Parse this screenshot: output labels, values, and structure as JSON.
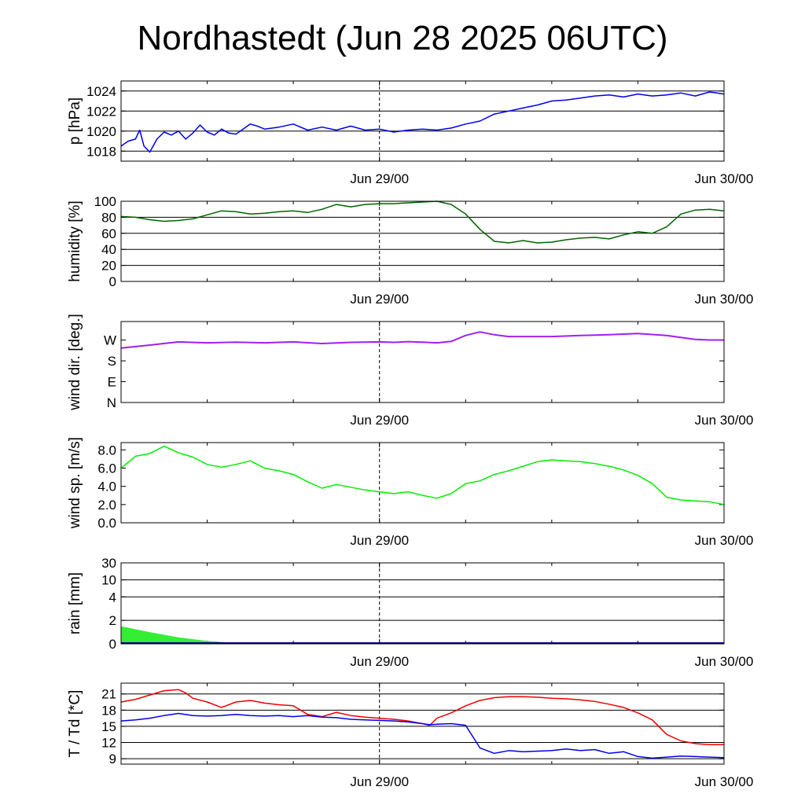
{
  "title": "Nordhastedt (Jun 28 2025 06UTC)",
  "x_ticks": [
    {
      "label": "Jun 29/00",
      "hour": 18
    },
    {
      "label": "Jun 30/00",
      "hour": 42
    }
  ],
  "colors": {
    "pressure": "#0000ee",
    "humidity": "#006400",
    "wind_dir": "#a020f0",
    "wind_speed": "#00ee00",
    "rain_fill": "#33ee33",
    "rain_line": "#00008b",
    "temperature": "#ee0000",
    "dewpoint": "#0000ee"
  },
  "chart_data": [
    {
      "type": "line",
      "id": "pressure",
      "ylabel": "p [hPa]",
      "ylim": [
        1017,
        1025
      ],
      "yticks": [
        1018,
        1020,
        1022,
        1024
      ],
      "ytick_labels": [
        "1018",
        "1020",
        "1022",
        "1024"
      ],
      "grid_values": [
        1018,
        1020,
        1022,
        1024
      ],
      "xlim_hours": [
        0,
        42
      ],
      "series": [
        {
          "color_key": "pressure",
          "x": [
            0,
            0.5,
            1,
            1.3,
            1.6,
            2,
            2.5,
            3,
            3.5,
            4,
            4.5,
            5,
            5.5,
            6,
            6.5,
            7,
            7.5,
            8,
            9,
            9.5,
            10,
            11,
            12,
            13,
            14,
            15,
            16,
            17,
            18,
            19,
            20,
            21,
            22,
            23,
            24,
            25,
            26,
            27,
            28,
            29,
            30,
            31,
            32,
            33,
            34,
            35,
            36,
            37,
            38,
            39,
            40,
            41,
            42
          ],
          "y": [
            1018.5,
            1019,
            1019.2,
            1020.1,
            1018.5,
            1017.9,
            1019.2,
            1019.9,
            1019.6,
            1020,
            1019.2,
            1019.8,
            1020.6,
            1019.9,
            1019.6,
            1020.2,
            1019.8,
            1019.7,
            1020.7,
            1020.5,
            1020.2,
            1020.4,
            1020.7,
            1020.1,
            1020.4,
            1020.1,
            1020.5,
            1020.1,
            1020.2,
            1019.9,
            1020.1,
            1020.2,
            1020.1,
            1020.3,
            1020.7,
            1021,
            1021.7,
            1022,
            1022.3,
            1022.6,
            1023,
            1023.1,
            1023.3,
            1023.5,
            1023.6,
            1023.4,
            1023.7,
            1023.5,
            1023.6,
            1023.8,
            1023.5,
            1023.9,
            1023.7
          ]
        }
      ]
    },
    {
      "type": "line",
      "id": "humidity",
      "ylabel": "humidity [%]",
      "ylim": [
        0,
        100
      ],
      "yticks": [
        0,
        20,
        40,
        60,
        80,
        100
      ],
      "ytick_labels": [
        "0",
        "20",
        "40",
        "60",
        "80",
        "100"
      ],
      "grid_values": [
        20,
        40,
        60,
        80,
        100
      ],
      "xlim_hours": [
        0,
        42
      ],
      "series": [
        {
          "color_key": "humidity",
          "x": [
            0,
            1,
            2,
            3,
            4,
            5,
            6,
            7,
            8,
            9,
            10,
            11,
            12,
            13,
            14,
            15,
            16,
            17,
            18,
            19,
            20,
            21,
            22,
            23,
            24,
            25,
            26,
            27,
            28,
            29,
            30,
            31,
            32,
            33,
            34,
            35,
            36,
            37,
            38,
            39,
            40,
            41,
            42
          ],
          "y": [
            81,
            80,
            77,
            75,
            76,
            78,
            83,
            88,
            87,
            84,
            85,
            87,
            88,
            86,
            90,
            96,
            93,
            96,
            97,
            97,
            98,
            99,
            100,
            96,
            84,
            65,
            50,
            48,
            51,
            48,
            49,
            52,
            54,
            55,
            53,
            58,
            62,
            60,
            68,
            84,
            89,
            90,
            88
          ]
        }
      ]
    },
    {
      "type": "line",
      "id": "wind_dir",
      "ylabel": "wind dir. [deg.]",
      "ylim": [
        0,
        350
      ],
      "yticks": [
        0,
        90,
        180,
        270
      ],
      "ytick_labels": [
        "N",
        "E",
        "S",
        "W"
      ],
      "grid_values": [],
      "xlim_hours": [
        0,
        42
      ],
      "series": [
        {
          "color_key": "wind_dir",
          "x": [
            0,
            2,
            4,
            6,
            8,
            10,
            12,
            14,
            16,
            18,
            19,
            20,
            21,
            22,
            23,
            24,
            25,
            26,
            27,
            28,
            30,
            32,
            34,
            36,
            38,
            40,
            41,
            42
          ],
          "y": [
            235,
            248,
            262,
            258,
            261,
            258,
            262,
            255,
            260,
            262,
            260,
            263,
            261,
            258,
            264,
            290,
            305,
            293,
            285,
            285,
            285,
            290,
            293,
            298,
            290,
            273,
            270,
            270
          ]
        }
      ]
    },
    {
      "type": "line",
      "id": "wind_speed",
      "ylabel": "wind sp. [m/s]",
      "ylim": [
        0,
        8.8
      ],
      "yticks": [
        0,
        2,
        4,
        6,
        8
      ],
      "ytick_labels": [
        "0.0",
        "2.0",
        "4.0",
        "6.0",
        "8.0"
      ],
      "grid_values": [],
      "xlim_hours": [
        0,
        42
      ],
      "series": [
        {
          "color_key": "wind_speed",
          "x": [
            0,
            1,
            2,
            3,
            4,
            5,
            6,
            7,
            8,
            9,
            10,
            11,
            12,
            13,
            14,
            15,
            16,
            17,
            18,
            19,
            20,
            21,
            22,
            23,
            24,
            25,
            26,
            27,
            28,
            29,
            30,
            31,
            32,
            33,
            34,
            35,
            36,
            37,
            38,
            39,
            40,
            41,
            42
          ],
          "y": [
            6,
            7.3,
            7.6,
            8.4,
            7.7,
            7.2,
            6.4,
            6.1,
            6.4,
            6.8,
            6,
            5.7,
            5.3,
            4.5,
            3.8,
            4.2,
            3.9,
            3.6,
            3.4,
            3.2,
            3.4,
            3,
            2.7,
            3.2,
            4.3,
            4.6,
            5.3,
            5.7,
            6.2,
            6.7,
            6.9,
            6.8,
            6.7,
            6.5,
            6.2,
            5.8,
            5.2,
            4.3,
            2.8,
            2.5,
            2.4,
            2.3,
            2.0
          ]
        }
      ]
    },
    {
      "type": "area",
      "id": "rain",
      "ylabel": "rain [mm]",
      "ylim": [
        0,
        30
      ],
      "yticks": [
        0,
        2,
        4,
        10,
        30
      ],
      "ytick_labels": [
        "0",
        "2",
        "4",
        "10",
        "30"
      ],
      "grid_values": [
        2,
        4,
        10,
        30
      ],
      "xlim_hours": [
        0,
        42
      ],
      "series": [
        {
          "color_key": "rain_fill",
          "x": [
            0,
            2,
            4,
            6,
            8,
            9.5,
            10,
            42
          ],
          "y": [
            1.5,
            1.0,
            0.55,
            0.25,
            0.06,
            0,
            0,
            0
          ]
        }
      ]
    },
    {
      "type": "line",
      "id": "temperature",
      "ylabel": "T / Td [*C]",
      "ylim": [
        8,
        23
      ],
      "yticks": [
        9,
        12,
        15,
        18,
        21
      ],
      "ytick_labels": [
        "9",
        "12",
        "15",
        "18",
        "21"
      ],
      "grid_values": [
        9,
        12,
        15,
        18,
        21
      ],
      "xlim_hours": [
        0,
        42
      ],
      "series": [
        {
          "color_key": "temperature",
          "x": [
            0,
            1,
            2,
            3,
            4,
            4.5,
            5,
            6,
            7,
            8,
            9,
            10,
            11,
            12,
            13,
            14,
            15,
            16,
            17,
            18,
            19,
            20,
            21,
            21.5,
            22,
            23,
            24,
            25,
            26,
            27,
            28,
            29,
            30,
            31,
            32,
            33,
            34,
            35,
            36,
            37,
            38,
            39,
            40,
            41,
            42
          ],
          "y": [
            19.5,
            20,
            20.8,
            21.6,
            21.8,
            21.2,
            20.2,
            19.5,
            18.5,
            19.5,
            19.8,
            19.3,
            19,
            18.8,
            17.2,
            16.8,
            17.6,
            17,
            16.7,
            16.5,
            16.3,
            16,
            15.5,
            15.2,
            16.5,
            17.5,
            18.8,
            19.8,
            20.3,
            20.5,
            20.5,
            20.4,
            20.2,
            20.1,
            19.9,
            19.6,
            19.1,
            18.5,
            17.5,
            16.2,
            13.5,
            12.3,
            11.8,
            11.6,
            11.6
          ]
        },
        {
          "color_key": "dewpoint",
          "x": [
            0,
            1,
            2,
            3,
            4,
            5,
            6,
            7,
            8,
            9,
            10,
            11,
            12,
            13,
            14,
            15,
            16,
            17,
            18,
            19,
            20,
            21,
            21.5,
            22,
            23,
            24,
            25,
            26,
            27,
            28,
            29,
            30,
            31,
            32,
            33,
            34,
            35,
            36,
            37,
            38,
            39,
            40,
            41,
            42
          ],
          "y": [
            16,
            16.2,
            16.5,
            17,
            17.4,
            17,
            16.9,
            17,
            17.2,
            17,
            16.9,
            17,
            16.8,
            17,
            16.7,
            16.6,
            16.3,
            16.2,
            16.1,
            16,
            15.8,
            15.5,
            15.3,
            15.4,
            15.5,
            15.2,
            11,
            10,
            10.5,
            10.3,
            10.4,
            10.5,
            10.8,
            10.5,
            10.7,
            10,
            10.3,
            9.4,
            9.1,
            9.3,
            9.5,
            9.4,
            9.3,
            9.2
          ]
        }
      ]
    }
  ]
}
